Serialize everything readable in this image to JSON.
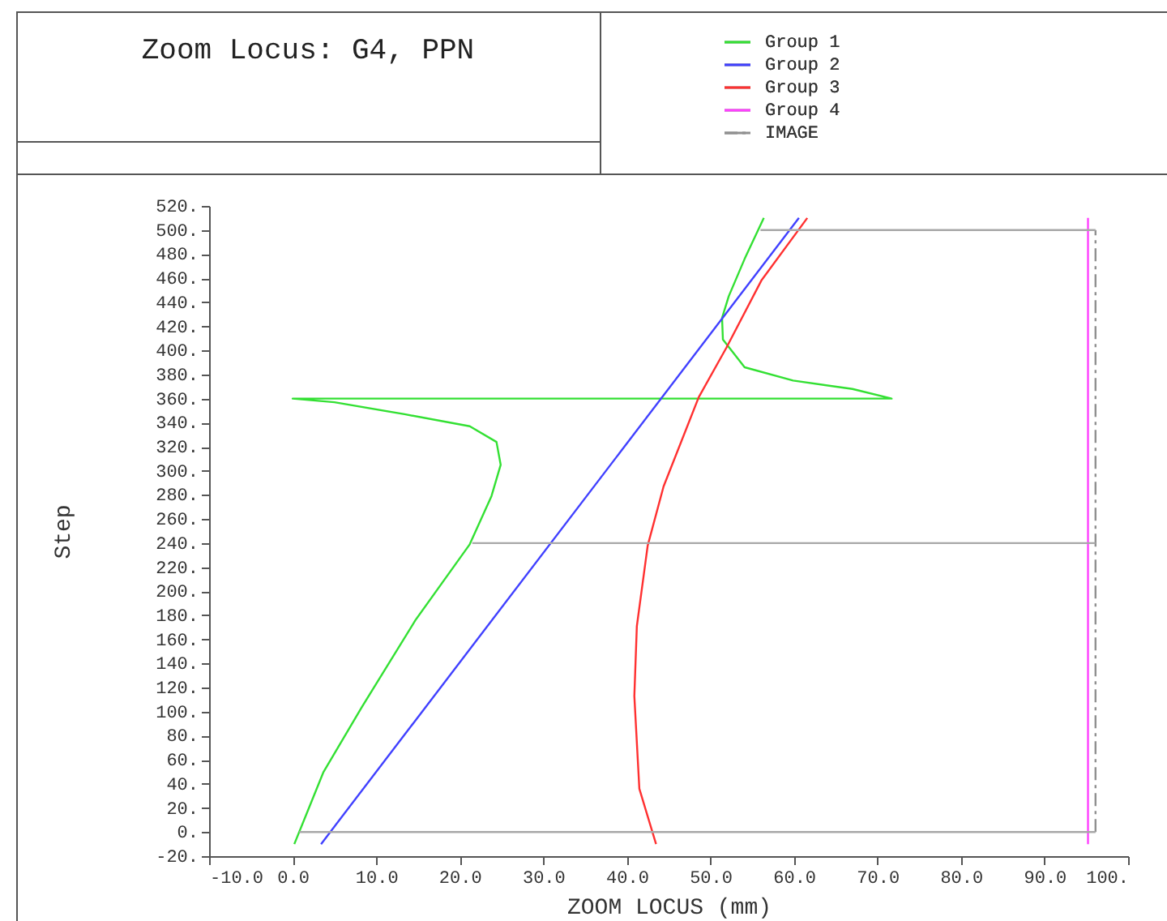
{
  "chart_data": {
    "type": "line",
    "title": "Zoom Locus: G4, PPN",
    "xlabel": "ZOOM LOCUS (mm)",
    "ylabel": "Step",
    "legend": "top right",
    "grid": false,
    "xlim": [
      -10,
      100
    ],
    "ylim": [
      -20,
      520
    ],
    "xticks": [
      {
        "value": -10,
        "label": "-10.0"
      },
      {
        "value": 0,
        "label": "0.0"
      },
      {
        "value": 10,
        "label": "10.0"
      },
      {
        "value": 20,
        "label": "20.0"
      },
      {
        "value": 30,
        "label": "30.0"
      },
      {
        "value": 40,
        "label": "40.0"
      },
      {
        "value": 50,
        "label": "50.0"
      },
      {
        "value": 60,
        "label": "60.0"
      },
      {
        "value": 70,
        "label": "70.0"
      },
      {
        "value": 80,
        "label": "80.0"
      },
      {
        "value": 90,
        "label": "90.0"
      },
      {
        "value": 100,
        "label": "100."
      }
    ],
    "yticks": [
      {
        "value": -20,
        "label": "-20."
      },
      {
        "value": 0,
        "label": "0."
      },
      {
        "value": 20,
        "label": "20."
      },
      {
        "value": 40,
        "label": "40."
      },
      {
        "value": 60,
        "label": "60."
      },
      {
        "value": 80,
        "label": "80."
      },
      {
        "value": 100,
        "label": "100."
      },
      {
        "value": 120,
        "label": "120."
      },
      {
        "value": 140,
        "label": "140."
      },
      {
        "value": 160,
        "label": "160."
      },
      {
        "value": 180,
        "label": "180."
      },
      {
        "value": 200,
        "label": "200."
      },
      {
        "value": 220,
        "label": "220."
      },
      {
        "value": 240,
        "label": "240."
      },
      {
        "value": 260,
        "label": "260."
      },
      {
        "value": 280,
        "label": "280."
      },
      {
        "value": 300,
        "label": "300."
      },
      {
        "value": 320,
        "label": "320."
      },
      {
        "value": 340,
        "label": "340."
      },
      {
        "value": 360,
        "label": "360."
      },
      {
        "value": 380,
        "label": "380."
      },
      {
        "value": 400,
        "label": "400."
      },
      {
        "value": 420,
        "label": "420."
      },
      {
        "value": 440,
        "label": "440."
      },
      {
        "value": 460,
        "label": "460."
      },
      {
        "value": 480,
        "label": "480."
      },
      {
        "value": 500,
        "label": "500."
      },
      {
        "value": 520,
        "label": "520."
      }
    ],
    "series": [
      {
        "name": "Group 1",
        "color": "#33e033",
        "x": [
          0.2,
          3.7,
          8.3,
          14.7,
          21.2,
          23.8,
          24.9,
          24.4,
          21.2,
          13.4,
          5.0,
          0.0,
          71.7,
          67.0,
          59.9,
          54.1,
          51.5,
          51.4,
          52.2,
          54.1,
          56.4
        ],
        "values": [
          -10,
          50,
          104,
          176,
          239,
          279,
          305,
          324,
          337,
          347,
          357,
          360,
          360,
          368,
          375,
          386,
          409,
          427,
          445,
          476,
          510
        ]
      },
      {
        "name": "Group 2",
        "color": "#4040ff",
        "x": [
          3.4,
          60.6
        ],
        "values": [
          -10,
          510
        ]
      },
      {
        "name": "Group 3",
        "color": "#ff3030",
        "x": [
          43.5,
          41.5,
          40.9,
          41.2,
          42.5,
          44.4,
          48.6,
          51.9,
          56.1,
          61.6
        ],
        "values": [
          -10,
          36,
          113,
          171,
          238,
          287,
          361,
          402,
          458,
          510
        ]
      },
      {
        "name": "Group 4",
        "color": "#ff40ff",
        "x": [
          95.2,
          95.2
        ],
        "values": [
          -10,
          510
        ]
      },
      {
        "name": "IMAGE",
        "color": "#909090",
        "line_style": "dashed",
        "x": [
          96.1,
          96.1
        ],
        "values": [
          0,
          500
        ]
      },
      {
        "color": "#a8a8a8",
        "x": [
          0.8,
          96.1
        ],
        "values": [
          0,
          0
        ]
      },
      {
        "color": "#a8a8a8",
        "x": [
          21.5,
          96.1
        ],
        "values": [
          240,
          240
        ]
      },
      {
        "color": "#a8a8a8",
        "x": [
          56.0,
          96.1
        ],
        "values": [
          500,
          500
        ]
      }
    ]
  }
}
